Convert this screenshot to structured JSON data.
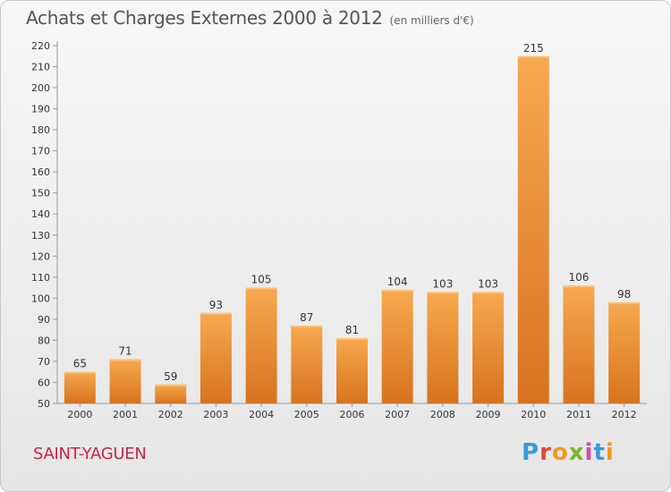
{
  "header": {
    "title": "Achats et Charges Externes 2000 à 2012",
    "unit": "(en milliers d'€)"
  },
  "footer": {
    "place": "SAINT-YAGUEN",
    "logo": "Proxiti"
  },
  "colors": {
    "bar_light": "#f7a94f",
    "bar_dark": "#d7731e",
    "place": "#c8254a"
  },
  "chart_data": {
    "type": "bar",
    "title": "Achats et Charges Externes 2000 à 2012",
    "subtitle": "(en milliers d'€)",
    "categories": [
      "2000",
      "2001",
      "2002",
      "2003",
      "2004",
      "2005",
      "2006",
      "2007",
      "2008",
      "2009",
      "2010",
      "2011",
      "2012"
    ],
    "values": [
      65,
      71,
      59,
      93,
      105,
      87,
      81,
      104,
      103,
      103,
      215,
      106,
      98
    ],
    "ylim": [
      50,
      220
    ],
    "yticks": [
      50,
      60,
      70,
      80,
      90,
      100,
      110,
      120,
      130,
      140,
      150,
      160,
      170,
      180,
      190,
      200,
      210,
      220
    ],
    "grid": false,
    "legend": "none"
  }
}
